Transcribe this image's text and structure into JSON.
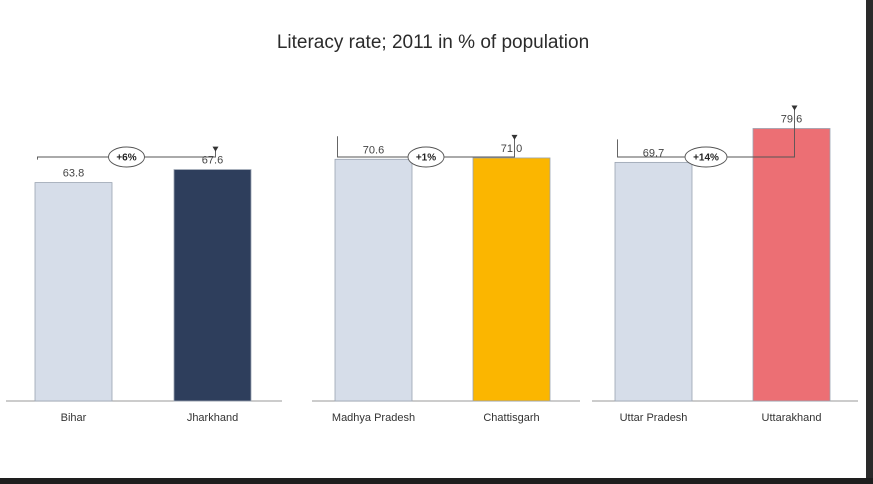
{
  "chart_data": {
    "type": "bar",
    "title": "Literacy rate; 2011 in % of population",
    "xlabel": "",
    "ylabel": "",
    "ylim": [
      0,
      85
    ],
    "grid": false,
    "legend": "none",
    "groups": [
      {
        "categories": [
          "Bihar",
          "Jharkhand"
        ],
        "values": [
          63.8,
          67.6
        ],
        "value_labels": [
          "63.8",
          "67.6"
        ],
        "colors": [
          "#d6dde9",
          "#2e3e5c"
        ],
        "difference_label": "+6%"
      },
      {
        "categories": [
          "Madhya Pradesh",
          "Chattisgarh"
        ],
        "values": [
          70.6,
          71.0
        ],
        "value_labels": [
          "70.6",
          "71.0"
        ],
        "colors": [
          "#d6dde9",
          "#fbb600"
        ],
        "difference_label": "+1%"
      },
      {
        "categories": [
          "Uttar Pradesh",
          "Uttarakhand"
        ],
        "values": [
          69.7,
          79.6
        ],
        "value_labels": [
          "69.7",
          "79.6"
        ],
        "colors": [
          "#d6dde9",
          "#ec6f74"
        ],
        "difference_label": "+14%"
      }
    ],
    "bar_outline_color": "#9aa3b1",
    "axis_color": "#9a9a9a"
  }
}
